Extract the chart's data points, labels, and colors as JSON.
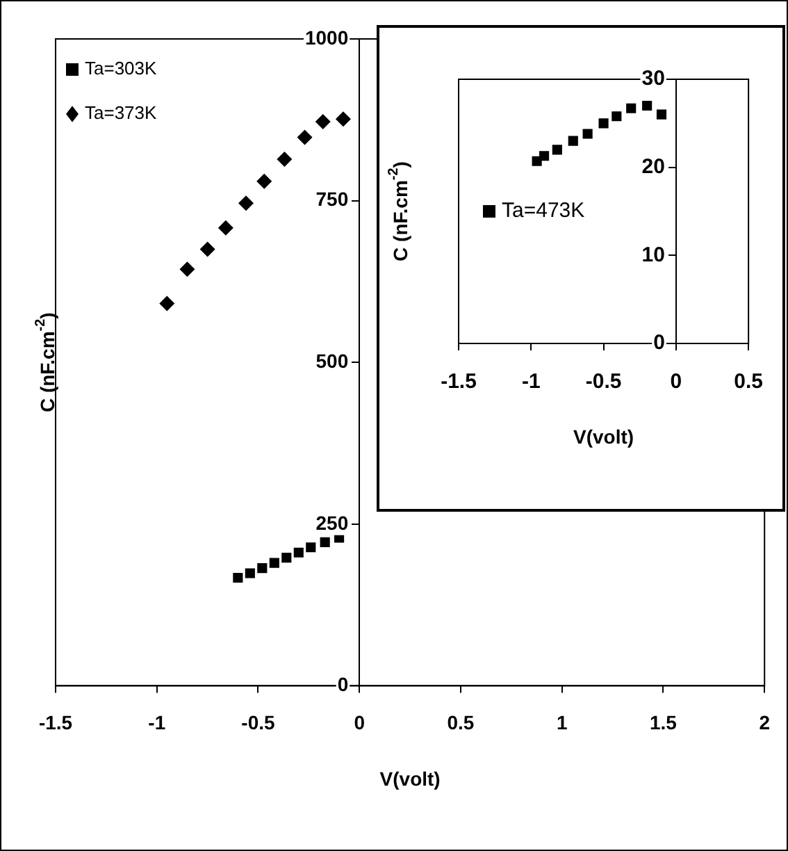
{
  "chart_data": [
    {
      "type": "scatter",
      "xlabel": "V(volt)",
      "ylabel": "C (nF.cm$^{-2}$)",
      "xlim": [
        -1.5,
        2
      ],
      "xticks": [
        -1.5,
        -1,
        -0.5,
        0,
        0.5,
        1,
        1.5,
        2
      ],
      "ylim": [
        0,
        1000
      ],
      "yticks": [
        0,
        250,
        500,
        750,
        1000
      ],
      "grid": false,
      "legend": "top left",
      "series": [
        {
          "name": "Ta=303K",
          "color": "#000000",
          "marker": "square",
          "x": [
            -0.6,
            -0.54,
            -0.48,
            -0.42,
            -0.36,
            -0.3,
            -0.24,
            -0.17,
            -0.1
          ],
          "values": [
            167,
            174,
            182,
            190,
            198,
            206,
            214,
            222,
            229
          ]
        },
        {
          "name": "Ta=373K",
          "color": "#000000",
          "marker": "diamond",
          "x": [
            -0.95,
            -0.85,
            -0.75,
            -0.66,
            -0.56,
            -0.47,
            -0.37,
            -0.27,
            -0.18,
            -0.08
          ],
          "values": [
            591,
            644,
            675,
            708,
            746,
            780,
            814,
            848,
            872,
            876
          ]
        }
      ]
    },
    {
      "type": "scatter",
      "xlabel": "V(volt)",
      "ylabel": "C (nF.cm$^{-2}$)",
      "xlim": [
        -1.5,
        0.5
      ],
      "xticks": [
        -1.5,
        -1,
        -0.5,
        0,
        0.5
      ],
      "ylim": [
        0,
        30
      ],
      "yticks": [
        0,
        10,
        20,
        30
      ],
      "grid": false,
      "legend": "left",
      "series": [
        {
          "name": "Ta=473K",
          "color": "#000000",
          "marker": "square",
          "x": [
            -0.96,
            -0.91,
            -0.82,
            -0.71,
            -0.61,
            -0.5,
            -0.41,
            -0.31,
            -0.2,
            -0.1
          ],
          "values": [
            20.7,
            21.3,
            22.0,
            23.0,
            23.8,
            25.0,
            25.8,
            26.7,
            27.0,
            26.0
          ]
        }
      ]
    }
  ]
}
